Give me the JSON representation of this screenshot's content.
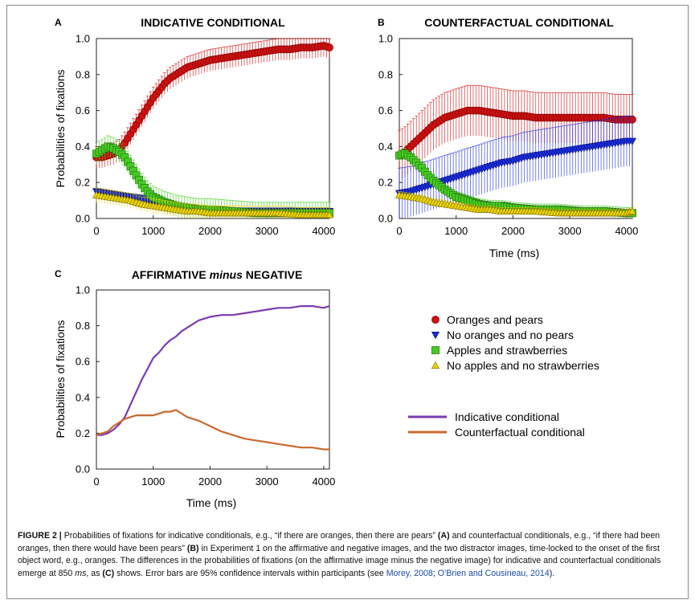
{
  "figure": {
    "panel_letters": [
      "A",
      "B",
      "C"
    ],
    "panel_titles": {
      "A": "INDICATIVE CONDITIONAL",
      "B": "COUNTERFACTUAL CONDITIONAL",
      "C_prefix": "AFFIRMATIVE ",
      "C_italic": "minus",
      "C_suffix": " NEGATIVE"
    },
    "ylabel": "Probabilities of fixations",
    "xlabel": "Time (ms)",
    "legend_markers": [
      {
        "label": "Oranges and pears",
        "color": "#cc1111",
        "marker": "circle"
      },
      {
        "label": "No oranges and no pears",
        "color": "#1a2bd6",
        "marker": "triangle-down"
      },
      {
        "label": "Apples and strawberries",
        "color": "#44cc22",
        "marker": "square"
      },
      {
        "label": "No apples and no strawberries",
        "color": "#e8d400",
        "marker": "triangle-up"
      }
    ],
    "legend_lines": [
      {
        "label": "Indicative conditional",
        "color": "#7a3bb0"
      },
      {
        "label": "Counterfactual conditional",
        "color": "#c86a2e"
      }
    ]
  },
  "caption": {
    "figure_label": "FIGURE 2 |",
    "text1": " Probabilities of fixations for indicative conditionals, e.g., “if there are oranges, then there are pears” ",
    "bold_a": "(A)",
    "text2": " and counterfactual conditionals, e.g., “if there had been oranges, then there would have been pears” ",
    "bold_b": "(B)",
    "text3": " in Experiment 1 on the affirmative and negative images, and the two distractor images, time-locked to the onset of the first object word, e.g., oranges. The differences in the probabilities of fixations (on the affirmative image minus the negative image) for indicative and counterfactual conditionals emerge at 850 ",
    "italic_ms": "ms",
    "text4": ", as ",
    "bold_c": "(C)",
    "text5": " shows. Error bars are 95% confidence intervals within participants (see ",
    "ref1": "Morey, 2008",
    "text6": "; ",
    "ref2": "O’Brien and Cousineau, 2014",
    "text7": ")."
  },
  "chart_data": [
    {
      "panel": "A",
      "type": "scatter",
      "title": "INDICATIVE CONDITIONAL",
      "xlabel": "",
      "ylabel": "Probabilities of fixations",
      "xlim": [
        0,
        4100
      ],
      "ylim": [
        0,
        1.0
      ],
      "xticks": [
        0,
        1000,
        2000,
        3000,
        4000
      ],
      "yticks": [
        0.0,
        0.2,
        0.4,
        0.6,
        0.8,
        1.0
      ],
      "error_bars": true,
      "series": [
        {
          "name": "Oranges and pears",
          "x": [
            0,
            100,
            200,
            300,
            400,
            500,
            600,
            700,
            800,
            900,
            1000,
            1100,
            1200,
            1300,
            1400,
            1500,
            1600,
            1700,
            1800,
            1900,
            2000,
            2200,
            2400,
            2600,
            2800,
            3000,
            3200,
            3400,
            3600,
            3800,
            4000,
            4100
          ],
          "y": [
            0.34,
            0.34,
            0.35,
            0.36,
            0.38,
            0.42,
            0.47,
            0.52,
            0.57,
            0.62,
            0.67,
            0.71,
            0.75,
            0.78,
            0.8,
            0.82,
            0.84,
            0.85,
            0.86,
            0.87,
            0.88,
            0.89,
            0.9,
            0.91,
            0.92,
            0.93,
            0.94,
            0.94,
            0.95,
            0.95,
            0.96,
            0.95
          ]
        },
        {
          "name": "No oranges and no pears",
          "x": [
            0,
            200,
            400,
            600,
            800,
            1000,
            1200,
            1400,
            1600,
            1800,
            2000,
            2400,
            2800,
            3200,
            3600,
            4000,
            4100
          ],
          "y": [
            0.15,
            0.14,
            0.13,
            0.12,
            0.11,
            0.09,
            0.07,
            0.06,
            0.05,
            0.05,
            0.04,
            0.04,
            0.04,
            0.04,
            0.04,
            0.04,
            0.04
          ]
        },
        {
          "name": "Apples and strawberries",
          "x": [
            0,
            100,
            200,
            300,
            400,
            500,
            600,
            700,
            800,
            900,
            1000,
            1200,
            1400,
            1600,
            1800,
            2000,
            2400,
            2800,
            3200,
            3600,
            4000,
            4100
          ],
          "y": [
            0.36,
            0.38,
            0.4,
            0.39,
            0.37,
            0.34,
            0.29,
            0.24,
            0.19,
            0.15,
            0.12,
            0.09,
            0.07,
            0.06,
            0.05,
            0.05,
            0.04,
            0.03,
            0.03,
            0.03,
            0.03,
            0.03
          ]
        },
        {
          "name": "No apples and no strawberries",
          "x": [
            0,
            200,
            400,
            600,
            800,
            1000,
            1200,
            1400,
            1600,
            1800,
            2000,
            2400,
            2800,
            3200,
            3600,
            4000,
            4100
          ],
          "y": [
            0.13,
            0.12,
            0.11,
            0.1,
            0.08,
            0.07,
            0.06,
            0.05,
            0.04,
            0.04,
            0.03,
            0.03,
            0.03,
            0.03,
            0.02,
            0.02,
            0.02
          ]
        }
      ]
    },
    {
      "panel": "B",
      "type": "scatter",
      "title": "COUNTERFACTUAL CONDITIONAL",
      "xlabel": "Time (ms)",
      "ylabel": "",
      "xlim": [
        0,
        4100
      ],
      "ylim": [
        0,
        1.0
      ],
      "xticks": [
        0,
        1000,
        2000,
        3000,
        4000
      ],
      "yticks": [
        0.0,
        0.2,
        0.4,
        0.6,
        0.8,
        1.0
      ],
      "error_bars": true,
      "series": [
        {
          "name": "Oranges and pears",
          "x": [
            0,
            100,
            200,
            300,
            400,
            500,
            600,
            700,
            800,
            900,
            1000,
            1100,
            1200,
            1300,
            1400,
            1600,
            1800,
            2000,
            2200,
            2400,
            2600,
            2800,
            3000,
            3200,
            3400,
            3600,
            3800,
            4000,
            4100
          ],
          "y": [
            0.35,
            0.37,
            0.4,
            0.43,
            0.46,
            0.49,
            0.52,
            0.54,
            0.56,
            0.57,
            0.58,
            0.59,
            0.6,
            0.6,
            0.6,
            0.59,
            0.58,
            0.57,
            0.57,
            0.56,
            0.56,
            0.56,
            0.56,
            0.56,
            0.56,
            0.56,
            0.55,
            0.55,
            0.55
          ]
        },
        {
          "name": "No oranges and no pears",
          "x": [
            0,
            200,
            400,
            600,
            800,
            1000,
            1200,
            1400,
            1600,
            1800,
            2000,
            2200,
            2400,
            2600,
            2800,
            3000,
            3200,
            3400,
            3600,
            3800,
            4000,
            4100
          ],
          "y": [
            0.14,
            0.15,
            0.17,
            0.19,
            0.21,
            0.23,
            0.25,
            0.27,
            0.29,
            0.31,
            0.32,
            0.34,
            0.35,
            0.36,
            0.37,
            0.38,
            0.39,
            0.4,
            0.41,
            0.42,
            0.43,
            0.43
          ]
        },
        {
          "name": "Apples and strawberries",
          "x": [
            0,
            100,
            200,
            300,
            400,
            500,
            600,
            800,
            1000,
            1200,
            1400,
            1600,
            1800,
            2000,
            2400,
            2800,
            3200,
            3600,
            4000,
            4100
          ],
          "y": [
            0.35,
            0.36,
            0.34,
            0.31,
            0.28,
            0.24,
            0.21,
            0.16,
            0.12,
            0.1,
            0.08,
            0.07,
            0.07,
            0.06,
            0.05,
            0.05,
            0.04,
            0.04,
            0.03,
            0.03
          ]
        },
        {
          "name": "No apples and no strawberries",
          "x": [
            0,
            200,
            400,
            600,
            800,
            1000,
            1200,
            1400,
            1600,
            1800,
            2000,
            2400,
            2800,
            3200,
            3600,
            4000,
            4100
          ],
          "y": [
            0.13,
            0.12,
            0.11,
            0.09,
            0.08,
            0.07,
            0.06,
            0.05,
            0.05,
            0.04,
            0.04,
            0.04,
            0.03,
            0.03,
            0.03,
            0.03,
            0.04
          ]
        }
      ]
    },
    {
      "panel": "C",
      "type": "line",
      "title": "AFFIRMATIVE minus NEGATIVE",
      "xlabel": "Time (ms)",
      "ylabel": "Probabilities of fixations",
      "xlim": [
        0,
        4100
      ],
      "ylim": [
        0,
        1.0
      ],
      "xticks": [
        0,
        1000,
        2000,
        3000,
        4000
      ],
      "yticks": [
        0.0,
        0.2,
        0.4,
        0.6,
        0.8,
        1.0
      ],
      "series": [
        {
          "name": "Indicative conditional",
          "x": [
            0,
            100,
            200,
            300,
            400,
            500,
            600,
            700,
            800,
            900,
            1000,
            1100,
            1200,
            1300,
            1400,
            1500,
            1600,
            1700,
            1800,
            1900,
            2000,
            2200,
            2400,
            2600,
            2800,
            3000,
            3200,
            3400,
            3600,
            3800,
            4000,
            4100
          ],
          "y": [
            0.19,
            0.19,
            0.2,
            0.22,
            0.25,
            0.29,
            0.36,
            0.43,
            0.5,
            0.56,
            0.62,
            0.65,
            0.69,
            0.72,
            0.74,
            0.77,
            0.79,
            0.81,
            0.83,
            0.84,
            0.85,
            0.86,
            0.86,
            0.87,
            0.88,
            0.89,
            0.9,
            0.9,
            0.91,
            0.91,
            0.9,
            0.91
          ]
        },
        {
          "name": "Counterfactual conditional",
          "x": [
            0,
            100,
            200,
            300,
            400,
            500,
            600,
            700,
            800,
            900,
            1000,
            1100,
            1200,
            1300,
            1400,
            1500,
            1600,
            1800,
            2000,
            2200,
            2400,
            2600,
            2800,
            3000,
            3200,
            3400,
            3600,
            3800,
            4000,
            4100
          ],
          "y": [
            0.19,
            0.2,
            0.21,
            0.24,
            0.26,
            0.28,
            0.29,
            0.3,
            0.3,
            0.3,
            0.3,
            0.31,
            0.32,
            0.32,
            0.33,
            0.31,
            0.29,
            0.27,
            0.24,
            0.21,
            0.19,
            0.17,
            0.16,
            0.15,
            0.14,
            0.13,
            0.12,
            0.12,
            0.11,
            0.11
          ]
        }
      ]
    }
  ]
}
